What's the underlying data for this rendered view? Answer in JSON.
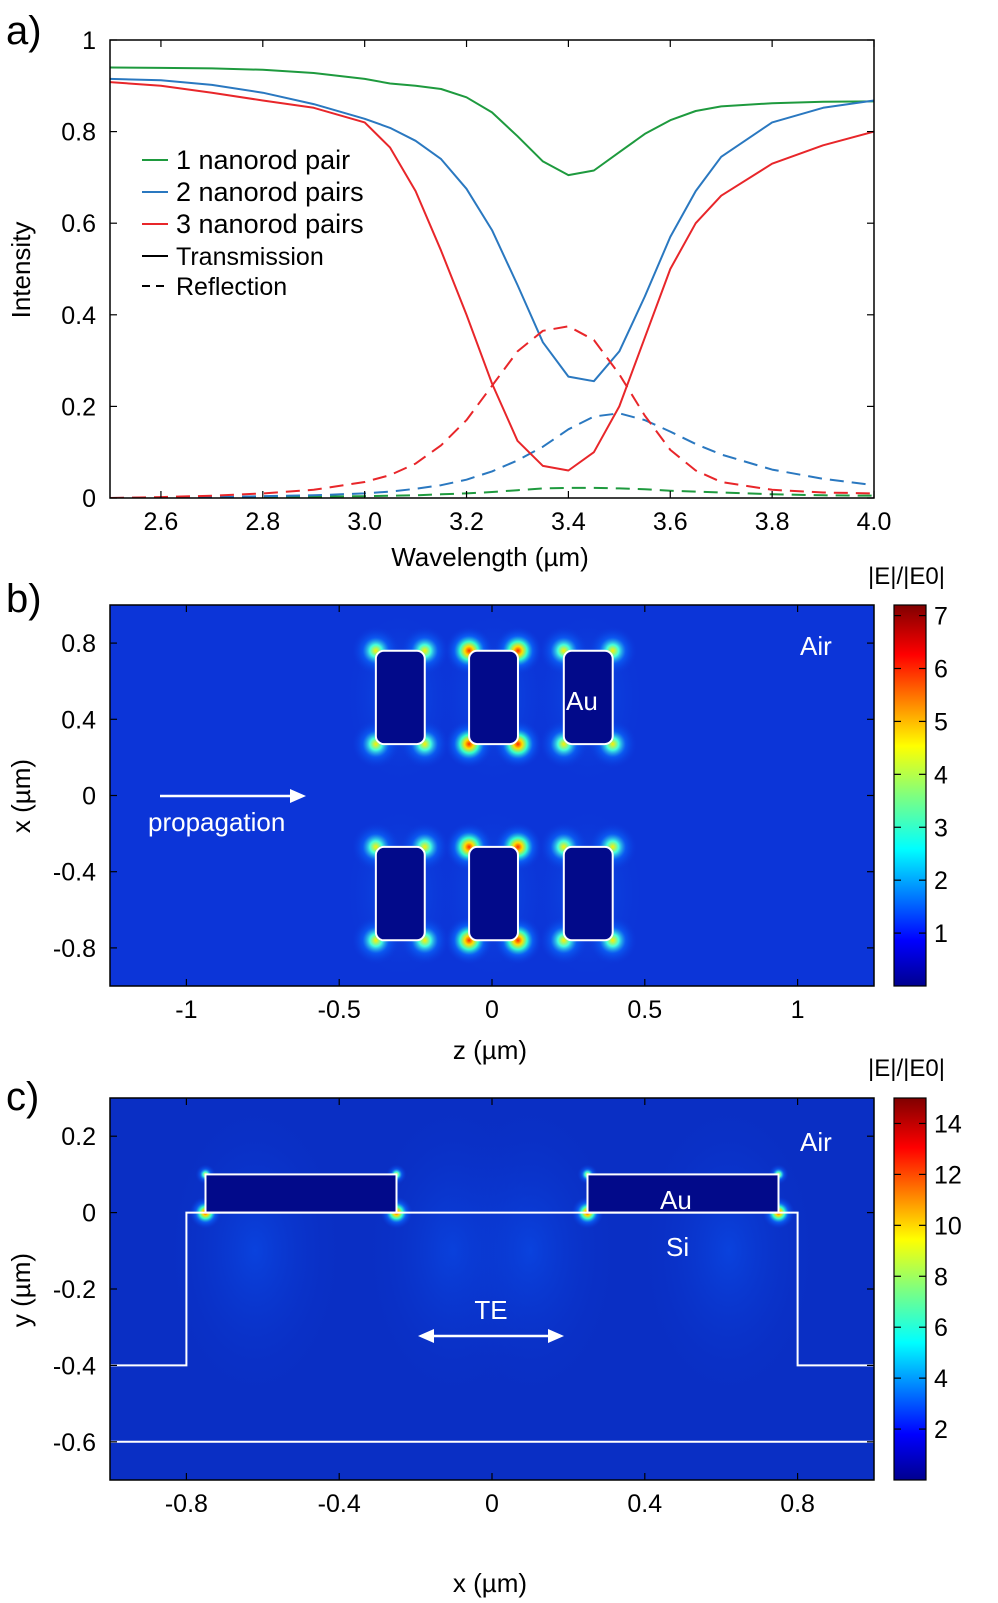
{
  "chart_data": [
    {
      "panel": "a)",
      "type": "line",
      "xlabel": "Wavelength (µm)",
      "ylabel": "Intensity",
      "xlim": [
        2.5,
        4.0
      ],
      "ylim": [
        0,
        1
      ],
      "xticks": [
        2.6,
        2.8,
        3.0,
        3.2,
        3.4,
        3.6,
        3.8,
        4.0
      ],
      "xtick_labels": [
        "2.6",
        "2.8",
        "3.0",
        "3.2",
        "3.4",
        "3.6",
        "3.8",
        "4.0"
      ],
      "yticks": [
        0,
        0.2,
        0.4,
        0.6,
        0.8,
        1
      ],
      "ytick_labels": [
        "0",
        "0.2",
        "0.4",
        "0.6",
        "0.8",
        "1"
      ],
      "legend": {
        "placement": "center-left",
        "entries": [
          {
            "label": "1 nanorod pair",
            "color": "#1e9a3e",
            "style": "solid"
          },
          {
            "label": "2 nanorod pairs",
            "color": "#2a78c0",
            "style": "solid"
          },
          {
            "label": "3 nanorod pairs",
            "color": "#e8262a",
            "style": "solid"
          },
          {
            "label": "Transmission",
            "color": "#000000",
            "style": "solid"
          },
          {
            "label": "Reflection",
            "color": "#000000",
            "style": "dashed"
          }
        ]
      },
      "x": [
        2.5,
        2.6,
        2.7,
        2.8,
        2.9,
        3.0,
        3.05,
        3.1,
        3.15,
        3.2,
        3.25,
        3.3,
        3.35,
        3.4,
        3.45,
        3.5,
        3.55,
        3.6,
        3.65,
        3.7,
        3.8,
        3.9,
        4.0
      ],
      "series": [
        {
          "name": "1 nanorod pair",
          "kind": "Transmission",
          "color": "#1e9a3e",
          "values": [
            0.94,
            0.939,
            0.938,
            0.935,
            0.928,
            0.915,
            0.905,
            0.9,
            0.893,
            0.875,
            0.842,
            0.79,
            0.735,
            0.705,
            0.715,
            0.755,
            0.795,
            0.825,
            0.845,
            0.855,
            0.862,
            0.865,
            0.866
          ]
        },
        {
          "name": "1 nanorod pair",
          "kind": "Reflection",
          "color": "#1e9a3e",
          "values": [
            0.0,
            0.0,
            0.001,
            0.002,
            0.003,
            0.004,
            0.005,
            0.006,
            0.008,
            0.01,
            0.013,
            0.017,
            0.021,
            0.022,
            0.022,
            0.021,
            0.019,
            0.016,
            0.014,
            0.012,
            0.008,
            0.006,
            0.005
          ]
        },
        {
          "name": "2 nanorod pairs",
          "kind": "Transmission",
          "color": "#2a78c0",
          "values": [
            0.915,
            0.912,
            0.902,
            0.885,
            0.86,
            0.828,
            0.808,
            0.78,
            0.74,
            0.675,
            0.585,
            0.465,
            0.34,
            0.265,
            0.255,
            0.32,
            0.44,
            0.57,
            0.67,
            0.745,
            0.82,
            0.852,
            0.868
          ]
        },
        {
          "name": "2 nanorod pairs",
          "kind": "Reflection",
          "color": "#2a78c0",
          "values": [
            0.0,
            0.001,
            0.002,
            0.004,
            0.006,
            0.01,
            0.014,
            0.02,
            0.028,
            0.04,
            0.058,
            0.082,
            0.112,
            0.15,
            0.178,
            0.185,
            0.17,
            0.145,
            0.118,
            0.095,
            0.062,
            0.042,
            0.028
          ]
        },
        {
          "name": "3 nanorod pairs",
          "kind": "Transmission",
          "color": "#e8262a",
          "values": [
            0.908,
            0.9,
            0.885,
            0.868,
            0.852,
            0.82,
            0.765,
            0.67,
            0.54,
            0.4,
            0.25,
            0.125,
            0.07,
            0.06,
            0.1,
            0.2,
            0.35,
            0.5,
            0.6,
            0.66,
            0.73,
            0.77,
            0.8
          ]
        },
        {
          "name": "3 nanorod pairs",
          "kind": "Reflection",
          "color": "#e8262a",
          "values": [
            0.0,
            0.002,
            0.005,
            0.01,
            0.018,
            0.035,
            0.05,
            0.075,
            0.115,
            0.17,
            0.245,
            0.32,
            0.365,
            0.375,
            0.345,
            0.27,
            0.18,
            0.105,
            0.06,
            0.035,
            0.018,
            0.012,
            0.01
          ]
        }
      ]
    },
    {
      "panel": "b)",
      "type": "heatmap",
      "xlabel": "z (µm)",
      "ylabel": "x (µm)",
      "xlim": [
        -1.25,
        1.25
      ],
      "ylim": [
        -1.0,
        1.0
      ],
      "xticks": [
        -1,
        -0.5,
        0,
        0.5,
        1
      ],
      "xtick_labels": [
        "-1",
        "-0.5",
        "0",
        "0.5",
        "1"
      ],
      "yticks": [
        -0.8,
        -0.4,
        0,
        0.4,
        0.8
      ],
      "ytick_labels": [
        "-0.8",
        "-0.4",
        "0",
        "0.4",
        "0.8"
      ],
      "colorbar": {
        "title": "|E|/|E0|",
        "min": 0,
        "max": 7.2,
        "ticks": [
          1,
          2,
          3,
          4,
          5,
          6,
          7
        ],
        "tick_labels": [
          "1",
          "2",
          "3",
          "4",
          "5",
          "6",
          "7"
        ]
      },
      "rods": [
        {
          "z": [
            -0.38,
            -0.22
          ],
          "x": [
            0.27,
            0.76
          ]
        },
        {
          "z": [
            -0.075,
            0.085
          ],
          "x": [
            0.27,
            0.76
          ]
        },
        {
          "z": [
            0.235,
            0.395
          ],
          "x": [
            0.27,
            0.76
          ]
        },
        {
          "z": [
            -0.38,
            -0.22
          ],
          "x": [
            -0.76,
            -0.27
          ]
        },
        {
          "z": [
            -0.075,
            0.085
          ],
          "x": [
            -0.76,
            -0.27
          ]
        },
        {
          "z": [
            0.235,
            0.395
          ],
          "x": [
            -0.76,
            -0.27
          ]
        }
      ],
      "annotations": {
        "air": "Air",
        "material": "Au",
        "propagation": "propagation"
      }
    },
    {
      "panel": "c)",
      "type": "heatmap",
      "xlabel": "x (µm)",
      "ylabel": "y (µm)",
      "xlim": [
        -1.0,
        1.0
      ],
      "ylim": [
        -0.7,
        0.3
      ],
      "xticks": [
        -0.8,
        -0.4,
        0,
        0.4,
        0.8
      ],
      "xtick_labels": [
        "-0.8",
        "-0.4",
        "0",
        "0.4",
        "0.8"
      ],
      "yticks": [
        0.2,
        0,
        -0.2,
        -0.4,
        -0.6
      ],
      "ytick_labels": [
        "0.2",
        "0",
        "-0.2",
        "-0.4",
        "-0.6"
      ],
      "colorbar": {
        "title": "|E|/|E0|",
        "min": 0,
        "max": 15,
        "ticks": [
          2,
          4,
          6,
          8,
          10,
          12,
          14
        ],
        "tick_labels": [
          "2",
          "4",
          "6",
          "8",
          "10",
          "12",
          "14"
        ]
      },
      "rods": [
        {
          "x": [
            -0.75,
            -0.25
          ],
          "y": [
            0,
            0.1
          ]
        },
        {
          "x": [
            0.25,
            0.75
          ],
          "y": [
            0,
            0.1
          ]
        }
      ],
      "ridge": {
        "x": [
          -0.8,
          0.8
        ],
        "top": 0,
        "bottom": -0.4
      },
      "substrate_line_y": -0.6,
      "annotations": {
        "air": "Air",
        "metal": "Au",
        "substrate": "Si",
        "polarization": "TE"
      }
    }
  ]
}
